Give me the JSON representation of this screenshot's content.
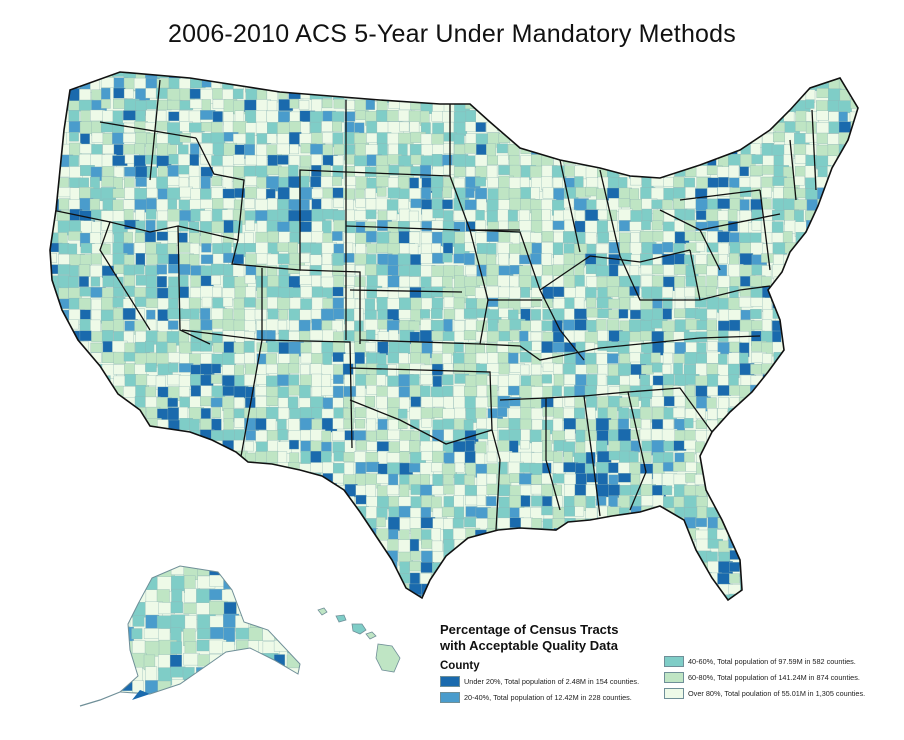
{
  "title": "2006-2010 ACS 5-Year Under Mandatory Methods",
  "legend": {
    "heading_line1": "Percentage of Census Tracts",
    "heading_line2": "with Acceptable Quality Data",
    "subheading": "County",
    "items": [
      {
        "label": "Under 20%, Total population of 2.48M in 154 counties.",
        "color": "#1a6aad"
      },
      {
        "label": "20-40%, Total population of 12.42M in 228 counties.",
        "color": "#4a9ccc"
      },
      {
        "label": "40-60%, Total population of 97.59M in 582 counties.",
        "color": "#7fcdc7"
      },
      {
        "label": "60-80%, Total population of 141.24M in 874 counties.",
        "color": "#bfe5c4"
      },
      {
        "label": "Over 80%, Total poulation of 55.01M in 1,305 counties.",
        "color": "#eefae8"
      }
    ]
  },
  "colors": {
    "state_border": "#111111",
    "county_border": "#8fb6b6"
  }
}
